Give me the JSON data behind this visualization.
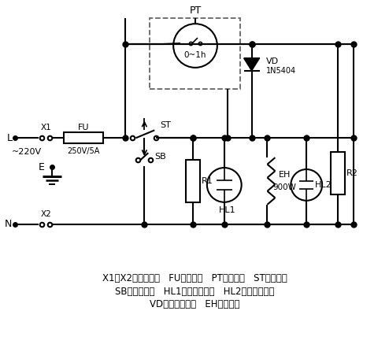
{
  "bg_color": "#ffffff",
  "legend_lines": [
    "X1、X2．接插端子   FU．燐断器   PT．定时器   ST．限温器",
    "SB．手动按键   HL1．加热指示灯   HL2．保温指示灯",
    "VD．整流二极管   EH．发热器"
  ],
  "figsize": [
    4.94,
    4.42
  ],
  "dpi": 100
}
